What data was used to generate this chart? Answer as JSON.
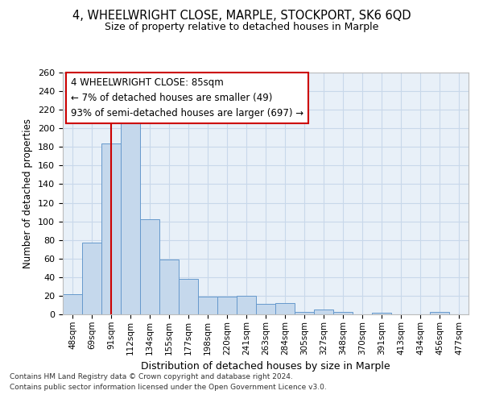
{
  "title1": "4, WHEELWRIGHT CLOSE, MARPLE, STOCKPORT, SK6 6QD",
  "title2": "Size of property relative to detached houses in Marple",
  "xlabel": "Distribution of detached houses by size in Marple",
  "ylabel": "Number of detached properties",
  "categories": [
    "48sqm",
    "69sqm",
    "91sqm",
    "112sqm",
    "134sqm",
    "155sqm",
    "177sqm",
    "198sqm",
    "220sqm",
    "241sqm",
    "263sqm",
    "284sqm",
    "305sqm",
    "327sqm",
    "348sqm",
    "370sqm",
    "391sqm",
    "413sqm",
    "434sqm",
    "456sqm",
    "477sqm"
  ],
  "values": [
    22,
    77,
    184,
    205,
    102,
    59,
    38,
    19,
    19,
    20,
    11,
    12,
    3,
    5,
    3,
    0,
    2,
    0,
    0,
    3,
    0
  ],
  "bar_color": "#c5d8ec",
  "bar_edge_color": "#6699cc",
  "grid_color": "#c8d8ea",
  "bg_color": "#e8f0f8",
  "annotation_text": "4 WHEELWRIGHT CLOSE: 85sqm\n← 7% of detached houses are smaller (49)\n93% of semi-detached houses are larger (697) →",
  "vline_x_index": 2,
  "vline_color": "#cc0000",
  "annotation_box_facecolor": "#ffffff",
  "annotation_box_edgecolor": "#cc0000",
  "footer1": "Contains HM Land Registry data © Crown copyright and database right 2024.",
  "footer2": "Contains public sector information licensed under the Open Government Licence v3.0.",
  "ylim": [
    0,
    260
  ],
  "yticks": [
    0,
    20,
    40,
    60,
    80,
    100,
    120,
    140,
    160,
    180,
    200,
    220,
    240,
    260
  ]
}
